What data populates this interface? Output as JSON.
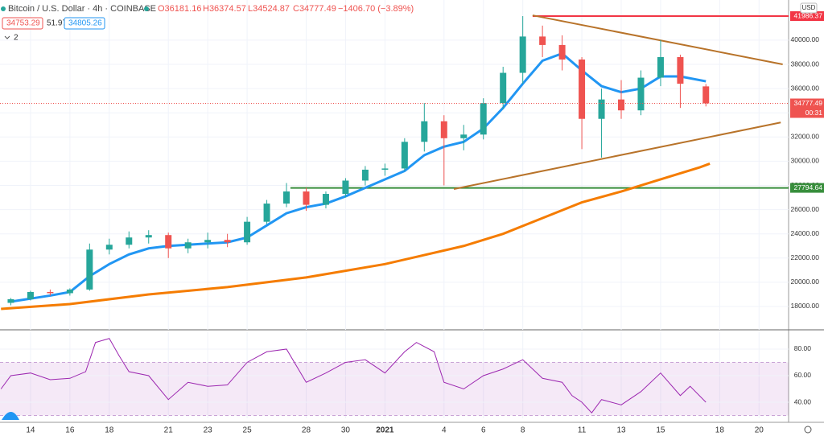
{
  "chart_data": {
    "type": "candlestick",
    "title": "Bitcoin / U.S. Dollar · 4h · COINBASE",
    "ohlc_header": [
      "O36181.16",
      "H36374.57",
      "L34524.87",
      "C34777.49",
      "−1406.70 (−3.89%)"
    ],
    "legend_values": [
      "34753.29",
      "51.97",
      "34805.26"
    ],
    "indicator_count": "2",
    "currency": "USD",
    "countdown": "00:31",
    "up_color": "#26a69a",
    "down_color": "#ef5350",
    "xlim": [
      -1.55,
      38.5
    ],
    "xticks": [
      {
        "value": 0,
        "label": "14"
      },
      {
        "value": 2,
        "label": "16"
      },
      {
        "value": 4,
        "label": "18"
      },
      {
        "value": 7,
        "label": "21"
      },
      {
        "value": 9,
        "label": "23"
      },
      {
        "value": 11,
        "label": "25"
      },
      {
        "value": 14,
        "label": "28"
      },
      {
        "value": 16,
        "label": "30"
      },
      {
        "value": 18,
        "label": "2021"
      },
      {
        "value": 21,
        "label": "4"
      },
      {
        "value": 23,
        "label": "6"
      },
      {
        "value": 25,
        "label": "8"
      },
      {
        "value": 28,
        "label": "11"
      },
      {
        "value": 30,
        "label": "13"
      },
      {
        "value": 32,
        "label": "15"
      },
      {
        "value": 35,
        "label": "18"
      },
      {
        "value": 37,
        "label": "20"
      }
    ],
    "ylim": [
      16073,
      43316
    ],
    "yticks": [
      {
        "value": 18000,
        "label": "18000.00"
      },
      {
        "value": 20000,
        "label": "20000.00"
      },
      {
        "value": 22000,
        "label": "22000.00"
      },
      {
        "value": 24000,
        "label": "24000.00"
      },
      {
        "value": 26000,
        "label": "26000.00"
      },
      {
        "value": 28000,
        "label": "28000.00"
      },
      {
        "value": 30000,
        "label": "30000.00"
      },
      {
        "value": 32000,
        "label": "32000.00"
      },
      {
        "value": 34000,
        "label": "34000.00"
      },
      {
        "value": 36000,
        "label": "36000.00"
      },
      {
        "value": 38000,
        "label": "38000.00"
      },
      {
        "value": 40000,
        "label": "40000.00"
      }
    ],
    "grid": true,
    "candles": {
      "x": [
        -1,
        0,
        1,
        2,
        3,
        4,
        5,
        6,
        7,
        8,
        9,
        10,
        11,
        12,
        13,
        14,
        15,
        16,
        17,
        18,
        19,
        20,
        21,
        22,
        23,
        24,
        25,
        26,
        27,
        28,
        29,
        30,
        31,
        32,
        33,
        34.3
      ],
      "open": [
        18300,
        18600,
        19200,
        19100,
        19400,
        22700,
        23100,
        23700,
        23900,
        22800,
        23300,
        23500,
        23300,
        25000,
        26500,
        27500,
        26400,
        27300,
        28400,
        29300,
        29400,
        31600,
        33300,
        31900,
        32200,
        34800,
        37300,
        40300,
        39600,
        38400,
        33500,
        35100,
        34200,
        36900,
        38600,
        36181.16
      ],
      "high": [
        18700,
        19300,
        19400,
        19500,
        23200,
        23600,
        24200,
        24300,
        24100,
        23600,
        24100,
        24000,
        25400,
        26800,
        28200,
        27800,
        27500,
        28600,
        29600,
        29800,
        31900,
        34800,
        33800,
        33000,
        35200,
        37800,
        41986,
        41200,
        40400,
        38600,
        36000,
        36700,
        37500,
        40000,
        38800,
        36374.57
      ],
      "low": [
        18100,
        18500,
        18900,
        18900,
        19300,
        22300,
        22800,
        23200,
        22000,
        22400,
        22800,
        22900,
        23100,
        24800,
        26200,
        25900,
        26100,
        27000,
        28000,
        28800,
        29200,
        30800,
        28000,
        30900,
        31800,
        34300,
        36400,
        38600,
        37500,
        31000,
        30300,
        33500,
        33800,
        36200,
        34400,
        34524.87
      ],
      "close": [
        18600,
        19200,
        19100,
        19400,
        22700,
        23100,
        23700,
        23900,
        22800,
        23300,
        23500,
        23300,
        25000,
        26500,
        27500,
        26400,
        27300,
        28400,
        29300,
        29400,
        31600,
        33300,
        31900,
        32200,
        34800,
        37300,
        40300,
        39600,
        38400,
        33500,
        35100,
        34200,
        36900,
        38600,
        36400,
        34777.49
      ]
    },
    "series": [
      {
        "color": "#2196f3",
        "width": 3,
        "x": [
          -1,
          1,
          2,
          3,
          4,
          5,
          6,
          7,
          8,
          9,
          10,
          11,
          12,
          13,
          14,
          15,
          16,
          17,
          18,
          19,
          20,
          21,
          22,
          23,
          24,
          25,
          26,
          27,
          28,
          29,
          30,
          31,
          32,
          33,
          34.3
        ],
        "values": [
          18400,
          18900,
          19200,
          20500,
          21500,
          22300,
          22800,
          23000,
          23100,
          23200,
          23300,
          23700,
          24700,
          25700,
          26200,
          26500,
          27100,
          27800,
          28500,
          29200,
          30500,
          31200,
          31600,
          32700,
          34400,
          36400,
          38300,
          38900,
          37500,
          36200,
          35700,
          36000,
          37000,
          37000,
          36600
        ]
      },
      {
        "color": "#f57c00",
        "width": 3,
        "x": [
          -1.5,
          2,
          6,
          10,
          14,
          18,
          22,
          24,
          26,
          28,
          30,
          32,
          34,
          34.5
        ],
        "values": [
          17800,
          18200,
          19000,
          19600,
          20400,
          21500,
          23000,
          24000,
          25300,
          26600,
          27500,
          28500,
          29500,
          29800
        ]
      }
    ],
    "trendlines": [
      {
        "color": "#b8732a",
        "x": [
          25.5,
          38.2
        ],
        "values": [
          42050,
          38000
        ]
      },
      {
        "color": "#b8732a",
        "x": [
          21.5,
          38.1
        ],
        "values": [
          27700,
          33200
        ]
      }
    ],
    "levels": [
      {
        "value": 41986.37,
        "label": "41986.37",
        "color": "#f23645",
        "x_start": 25.5
      },
      {
        "value": 27794.64,
        "label": "27794.64",
        "color": "#388e3c",
        "x_start": 13.2
      }
    ],
    "last_price": {
      "value": 34777.49,
      "label": "34777.49",
      "color": "#ef5350"
    },
    "rsi": {
      "color": "#9c27b0",
      "band": [
        30,
        70
      ],
      "ylim": [
        27.9,
        92.7
      ],
      "yticks": [
        {
          "value": 40,
          "label": "40.00"
        },
        {
          "value": 60,
          "label": "60.00"
        },
        {
          "value": 80,
          "label": "80.00"
        }
      ],
      "x": [
        -1.5,
        -1,
        0,
        1,
        2,
        2.8,
        3.3,
        4,
        4.5,
        5,
        6,
        7,
        8,
        9,
        10,
        11,
        12,
        13,
        14,
        15,
        16,
        17,
        18,
        19,
        19.6,
        20.5,
        21,
        22,
        23,
        24,
        25,
        26,
        27,
        27.5,
        28,
        28.5,
        29,
        30,
        31,
        32,
        33,
        33.5,
        34.3
      ],
      "values": [
        50,
        60,
        62,
        57,
        58,
        63,
        85,
        88,
        75,
        63,
        60,
        42,
        55,
        52,
        53,
        70,
        78,
        80,
        55,
        62,
        70,
        72,
        62,
        78,
        85,
        78,
        55,
        50,
        60,
        65,
        72,
        58,
        55,
        45,
        40,
        32,
        42,
        38,
        48,
        62,
        45,
        52,
        40
      ]
    }
  }
}
